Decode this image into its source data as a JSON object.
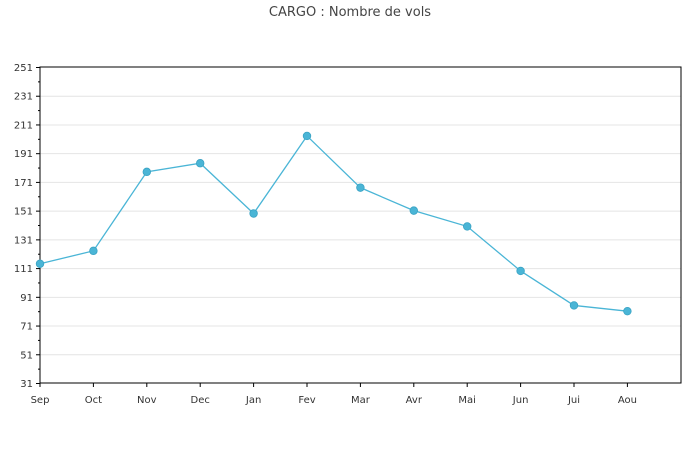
{
  "chart_data": {
    "type": "line",
    "title": "CARGO : Nombre de vols",
    "xlabel": "",
    "ylabel": "",
    "categories": [
      "Sep",
      "Oct",
      "Nov",
      "Dec",
      "Jan",
      "Fev",
      "Mar",
      "Avr",
      "Mai",
      "Jun",
      "Jui",
      "Aou"
    ],
    "series": [
      {
        "values": [
          114,
          123,
          178,
          184,
          149,
          203,
          167,
          151,
          140,
          109,
          85,
          81
        ]
      }
    ],
    "ylim": [
      31,
      251
    ],
    "yticks": [
      31,
      51,
      71,
      91,
      111,
      131,
      151,
      171,
      191,
      211,
      231,
      251
    ],
    "grid": true,
    "legend": "none",
    "colors": {
      "series": "#4ab5d6",
      "grid": "#e4e4e4",
      "axis": "#000000"
    }
  }
}
